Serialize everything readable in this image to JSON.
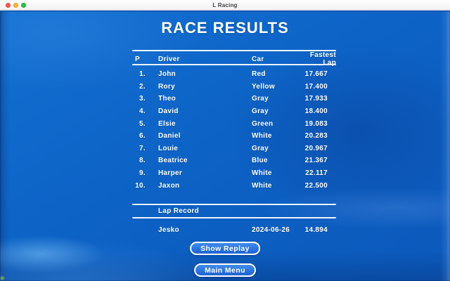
{
  "window": {
    "title": "L Racing"
  },
  "page": {
    "title": "RACE RESULTS"
  },
  "results_table": {
    "headers": {
      "position": "P",
      "driver": "Driver",
      "car": "Car",
      "fastest_lap": "Fastest Lap"
    },
    "rows": [
      {
        "position": "1.",
        "driver": "John",
        "car": "Red",
        "fastest_lap": "17.667"
      },
      {
        "position": "2.",
        "driver": "Rory",
        "car": "Yellow",
        "fastest_lap": "17.400"
      },
      {
        "position": "3.",
        "driver": "Theo",
        "car": "Gray",
        "fastest_lap": "17.933"
      },
      {
        "position": "4.",
        "driver": "David",
        "car": "Gray",
        "fastest_lap": "18.400"
      },
      {
        "position": "5.",
        "driver": "Elsie",
        "car": "Green",
        "fastest_lap": "19.083"
      },
      {
        "position": "6.",
        "driver": "Daniel",
        "car": "White",
        "fastest_lap": "20.283"
      },
      {
        "position": "7.",
        "driver": "Louie",
        "car": "Gray",
        "fastest_lap": "20.967"
      },
      {
        "position": "8.",
        "driver": "Beatrice",
        "car": "Blue",
        "fastest_lap": "21.367"
      },
      {
        "position": "9.",
        "driver": "Harper",
        "car": "White",
        "fastest_lap": "22.117"
      },
      {
        "position": "10.",
        "driver": "Jaxon",
        "car": "White",
        "fastest_lap": "22.500"
      }
    ]
  },
  "lap_record": {
    "title": "Lap Record",
    "holder": "Jesko",
    "date": "2024-06-26",
    "time": "14.894"
  },
  "buttons": {
    "show_replay": "Show Replay",
    "main_menu": "Main Menu"
  },
  "colors": {
    "background_base": "#0d62c5",
    "text": "#ffffff",
    "divider": "#ffffff",
    "button_fill_top": "#3f8bee",
    "button_fill_bottom": "#1c63d6",
    "button_border": "#ffffff",
    "titlebar_background": "#f6f6f8",
    "traffic_close": "#ff5f57",
    "traffic_minimize": "#febc2e",
    "traffic_zoom": "#28c840"
  }
}
